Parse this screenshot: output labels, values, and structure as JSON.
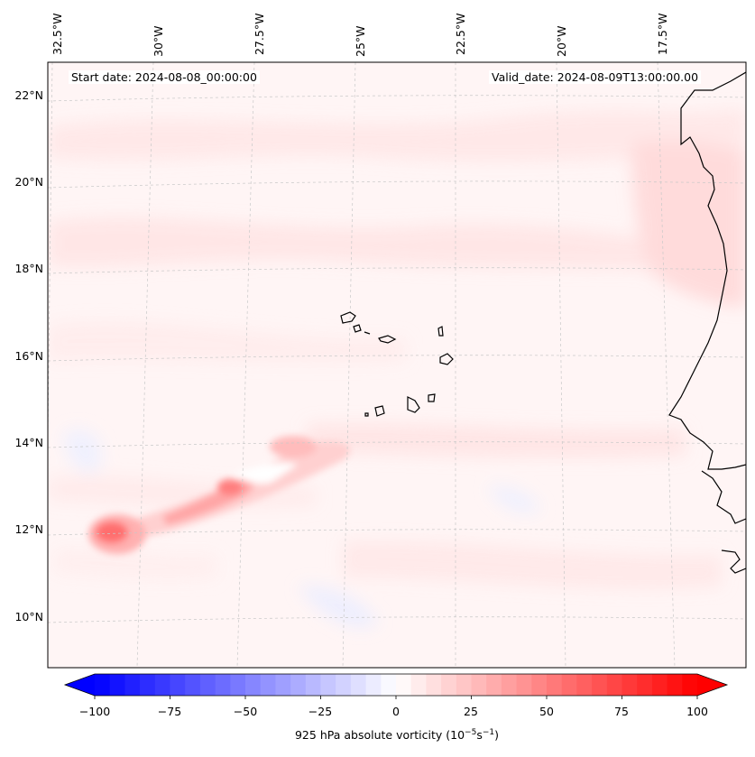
{
  "map": {
    "start_date": "Start date: 2024-08-08_00:00:00",
    "valid_date": "Valid_date: 2024-08-09T13:00:00.00",
    "lon_labels": [
      "32.5°W",
      "30°W",
      "27.5°W",
      "25°W",
      "22.5°W",
      "20°W",
      "17.5°W"
    ],
    "lat_labels": [
      "22°N",
      "20°N",
      "18°N",
      "16°N",
      "14°N",
      "12°N",
      "10°N"
    ],
    "extent": {
      "lon_min": -32.6,
      "lon_max": -15.8,
      "lat_min": 8.9,
      "lat_max": 22.8
    },
    "features": [
      "coastline-west-africa",
      "cape-verde-islands",
      "vorticity-band-13n",
      "vorticity-maximum-12n"
    ]
  },
  "colorbar": {
    "label": "925 hPa absolute vorticity (10",
    "label_exp": "−5",
    "label_unit": "s",
    "label_unit_exp": "−1",
    "label_end": ")",
    "ticks": [
      "−100",
      "−75",
      "−50",
      "−25",
      "0",
      "25",
      "50",
      "75",
      "100"
    ],
    "min": -100,
    "max": 100,
    "step": 5,
    "min_color": "#0000ff",
    "mid_color": "#ffffff",
    "max_color": "#ff0000"
  }
}
